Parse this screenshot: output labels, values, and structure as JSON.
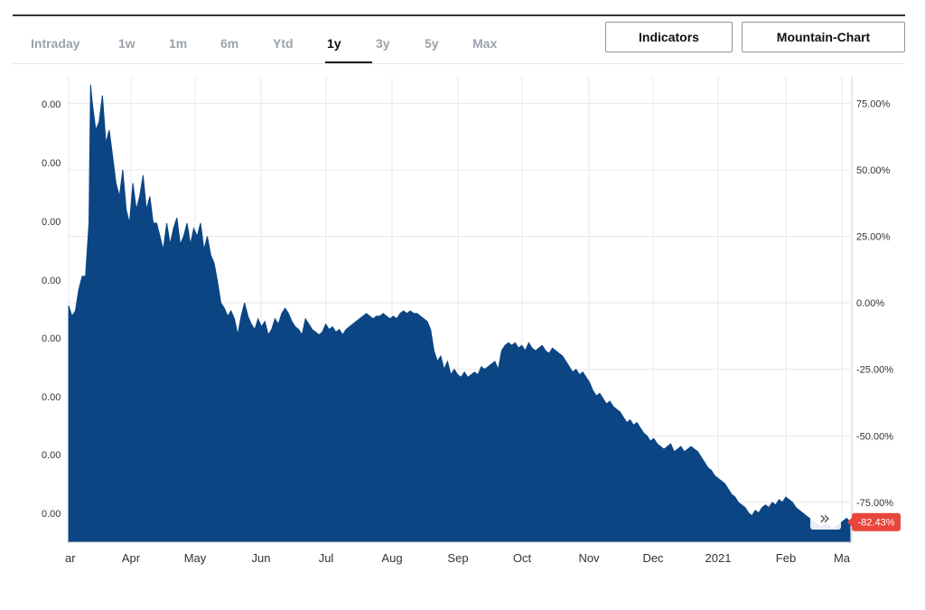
{
  "range_tabs": [
    {
      "label": "Intraday"
    },
    {
      "label": "1w"
    },
    {
      "label": "1m"
    },
    {
      "label": "6m"
    },
    {
      "label": "Ytd"
    },
    {
      "label": "1y"
    },
    {
      "label": "3y"
    },
    {
      "label": "5y"
    },
    {
      "label": "Max"
    }
  ],
  "active_tab": "1y",
  "toolbar": {
    "indicators_label": "Indicators",
    "chart_type_label": "Mountain-Chart"
  },
  "colors": {
    "area": "#0b4584",
    "badge": "#e8453c",
    "grid": "#e8e8e8"
  },
  "chart_data": {
    "type": "area",
    "x_tick_labels": [
      "ar",
      "Apr",
      "May",
      "Jun",
      "Jul",
      "Aug",
      "Sep",
      "Oct",
      "Nov",
      "Dec",
      "2021",
      "Feb",
      "Ma"
    ],
    "left_axis_labels": [
      "0.00",
      "0.00",
      "0.00",
      "0.00",
      "0.00",
      "0.00",
      "0.00",
      "0.00"
    ],
    "right_axis_labels": [
      "75.00%",
      "50.00%",
      "25.00%",
      "0.00%",
      "-25.00%",
      "-50.00%",
      "-75.00%"
    ],
    "y_unit": "percent change",
    "ylim": [
      -90,
      85
    ],
    "last_value_label": "-82.43%",
    "last_value": -82.43,
    "scroll_icon": "double-chevron-right-icon",
    "series": [
      {
        "points": [
          [
            0,
            -1
          ],
          [
            1,
            -5
          ],
          [
            2,
            -3
          ],
          [
            3,
            5
          ],
          [
            4,
            10
          ],
          [
            5,
            10
          ],
          [
            6,
            30
          ],
          [
            6.5,
            82
          ],
          [
            7,
            75
          ],
          [
            8,
            65
          ],
          [
            9,
            68
          ],
          [
            10,
            78
          ],
          [
            11,
            60
          ],
          [
            12,
            65
          ],
          [
            13,
            55
          ],
          [
            14,
            45
          ],
          [
            15,
            40
          ],
          [
            16,
            50
          ],
          [
            17,
            35
          ],
          [
            18,
            30
          ],
          [
            19,
            45
          ],
          [
            20,
            35
          ],
          [
            21,
            40
          ],
          [
            22,
            48
          ],
          [
            23,
            35
          ],
          [
            24,
            40
          ],
          [
            25,
            30
          ],
          [
            26,
            30
          ],
          [
            27,
            25
          ],
          [
            28,
            20
          ],
          [
            29,
            30
          ],
          [
            30,
            22
          ],
          [
            31,
            28
          ],
          [
            32,
            32
          ],
          [
            33,
            22
          ],
          [
            34,
            25
          ],
          [
            35,
            30
          ],
          [
            36,
            22
          ],
          [
            37,
            28
          ],
          [
            38,
            25
          ],
          [
            39,
            30
          ],
          [
            40,
            20
          ],
          [
            41,
            25
          ],
          [
            42,
            18
          ],
          [
            43,
            15
          ],
          [
            44,
            8
          ],
          [
            45,
            0
          ],
          [
            46,
            -2
          ],
          [
            47,
            -5
          ],
          [
            48,
            -3
          ],
          [
            49,
            -6
          ],
          [
            50,
            -12
          ],
          [
            51,
            -5
          ],
          [
            52,
            0
          ],
          [
            53,
            -5
          ],
          [
            54,
            -8
          ],
          [
            55,
            -10
          ],
          [
            56,
            -6
          ],
          [
            57,
            -9
          ],
          [
            58,
            -7
          ],
          [
            59,
            -12
          ],
          [
            60,
            -10
          ],
          [
            61,
            -6
          ],
          [
            62,
            -8
          ],
          [
            63,
            -4
          ],
          [
            64,
            -2
          ],
          [
            65,
            -4
          ],
          [
            66,
            -7
          ],
          [
            67,
            -9
          ],
          [
            68,
            -10
          ],
          [
            69,
            -12
          ],
          [
            70,
            -6
          ],
          [
            71,
            -8
          ],
          [
            72,
            -10
          ],
          [
            73,
            -11
          ],
          [
            74,
            -12
          ],
          [
            75,
            -11
          ],
          [
            76,
            -8
          ],
          [
            77,
            -10
          ],
          [
            78,
            -9
          ],
          [
            79,
            -11
          ],
          [
            80,
            -10
          ],
          [
            81,
            -12
          ],
          [
            82,
            -10
          ],
          [
            83,
            -9
          ],
          [
            84,
            -8
          ],
          [
            85,
            -7
          ],
          [
            86,
            -6
          ],
          [
            87,
            -5
          ],
          [
            88,
            -4
          ],
          [
            89,
            -5
          ],
          [
            90,
            -6
          ],
          [
            91,
            -5
          ],
          [
            92,
            -5
          ],
          [
            93,
            -4
          ],
          [
            94,
            -5
          ],
          [
            95,
            -6
          ],
          [
            96,
            -5
          ],
          [
            97,
            -6
          ],
          [
            98,
            -4
          ],
          [
            99,
            -3
          ],
          [
            100,
            -4
          ],
          [
            101,
            -3
          ],
          [
            102,
            -4
          ],
          [
            103,
            -4
          ],
          [
            104,
            -5
          ],
          [
            105,
            -6
          ],
          [
            106,
            -7
          ],
          [
            107,
            -10
          ],
          [
            108,
            -18
          ],
          [
            109,
            -22
          ],
          [
            110,
            -20
          ],
          [
            111,
            -25
          ],
          [
            112,
            -22
          ],
          [
            113,
            -27
          ],
          [
            114,
            -25
          ],
          [
            115,
            -27
          ],
          [
            116,
            -28
          ],
          [
            117,
            -26
          ],
          [
            118,
            -28
          ],
          [
            119,
            -27
          ],
          [
            120,
            -26
          ],
          [
            121,
            -27
          ],
          [
            122,
            -24
          ],
          [
            123,
            -25
          ],
          [
            124,
            -24
          ],
          [
            125,
            -23
          ],
          [
            126,
            -22
          ],
          [
            127,
            -25
          ],
          [
            128,
            -18
          ],
          [
            129,
            -16
          ],
          [
            130,
            -15
          ],
          [
            131,
            -16
          ],
          [
            132,
            -15
          ],
          [
            133,
            -17
          ],
          [
            134,
            -16
          ],
          [
            135,
            -18
          ],
          [
            136,
            -15
          ],
          [
            137,
            -17
          ],
          [
            138,
            -18
          ],
          [
            139,
            -17
          ],
          [
            140,
            -16
          ],
          [
            141,
            -18
          ],
          [
            142,
            -19
          ],
          [
            143,
            -17
          ],
          [
            144,
            -18
          ],
          [
            145,
            -19
          ],
          [
            146,
            -20
          ],
          [
            147,
            -22
          ],
          [
            148,
            -24
          ],
          [
            149,
            -26
          ],
          [
            150,
            -25
          ],
          [
            151,
            -27
          ],
          [
            152,
            -26
          ],
          [
            153,
            -28
          ],
          [
            154,
            -30
          ],
          [
            155,
            -33
          ],
          [
            156,
            -35
          ],
          [
            157,
            -34
          ],
          [
            158,
            -36
          ],
          [
            159,
            -38
          ],
          [
            160,
            -37
          ],
          [
            161,
            -39
          ],
          [
            162,
            -40
          ],
          [
            163,
            -41
          ],
          [
            164,
            -43
          ],
          [
            165,
            -45
          ],
          [
            166,
            -44
          ],
          [
            167,
            -46
          ],
          [
            168,
            -45
          ],
          [
            169,
            -47
          ],
          [
            170,
            -49
          ],
          [
            171,
            -50
          ],
          [
            172,
            -52
          ],
          [
            173,
            -51
          ],
          [
            174,
            -53
          ],
          [
            175,
            -54
          ],
          [
            176,
            -55
          ],
          [
            177,
            -54
          ],
          [
            178,
            -53
          ],
          [
            179,
            -56
          ],
          [
            180,
            -55
          ],
          [
            181,
            -54
          ],
          [
            182,
            -56
          ],
          [
            183,
            -55
          ],
          [
            184,
            -54
          ],
          [
            185,
            -55
          ],
          [
            186,
            -56
          ],
          [
            187,
            -58
          ],
          [
            188,
            -60
          ],
          [
            189,
            -62
          ],
          [
            190,
            -63
          ],
          [
            191,
            -65
          ],
          [
            192,
            -66
          ],
          [
            193,
            -67
          ],
          [
            194,
            -68
          ],
          [
            195,
            -70
          ],
          [
            196,
            -72
          ],
          [
            197,
            -73
          ],
          [
            198,
            -75
          ],
          [
            199,
            -76
          ],
          [
            200,
            -77
          ],
          [
            201,
            -79
          ],
          [
            202,
            -80
          ],
          [
            203,
            -78
          ],
          [
            204,
            -79
          ],
          [
            205,
            -77
          ],
          [
            206,
            -76
          ],
          [
            207,
            -77
          ],
          [
            208,
            -75
          ],
          [
            209,
            -76
          ],
          [
            210,
            -74
          ],
          [
            211,
            -75
          ],
          [
            212,
            -73
          ],
          [
            213,
            -74
          ],
          [
            214,
            -75
          ],
          [
            215,
            -77
          ],
          [
            216,
            -78
          ],
          [
            217,
            -79
          ],
          [
            218,
            -80
          ],
          [
            219,
            -81
          ],
          [
            220,
            -82
          ],
          [
            221,
            -83
          ],
          [
            222,
            -84
          ],
          [
            223,
            -84
          ],
          [
            224,
            -83
          ],
          [
            225,
            -84
          ],
          [
            226,
            -85
          ],
          [
            227,
            -84
          ],
          [
            228,
            -83
          ],
          [
            229,
            -82
          ],
          [
            230,
            -81
          ],
          [
            231,
            -82.43
          ]
        ]
      }
    ]
  }
}
